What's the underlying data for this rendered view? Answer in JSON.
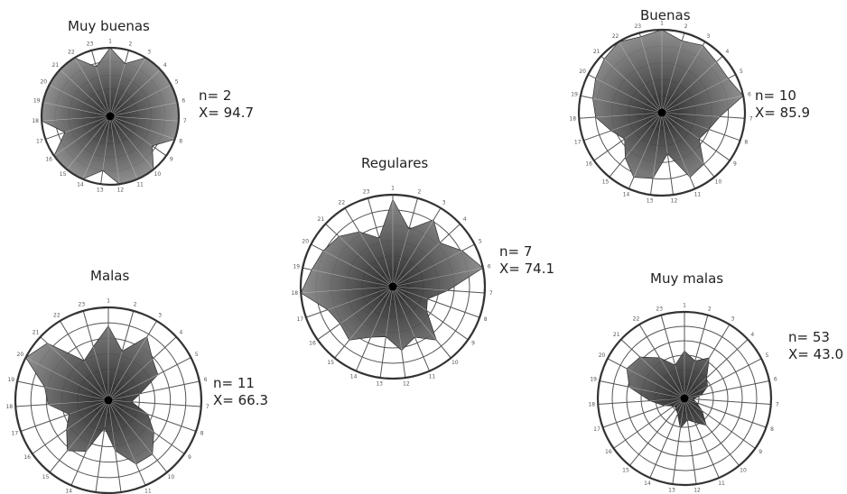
{
  "chart_data": [
    {
      "type": "radar",
      "title": "Muy buenas",
      "n_text": "n= 2",
      "x_text": "X= 94.7",
      "axes": [
        "1",
        "2",
        "3",
        "4",
        "5",
        "6",
        "7",
        "8",
        "9",
        "10",
        "11",
        "12",
        "13",
        "14",
        "15",
        "16",
        "17",
        "18",
        "19",
        "20",
        "21",
        "22",
        "23"
      ],
      "rings": 5,
      "max": 100,
      "values": [
        100,
        80,
        100,
        100,
        100,
        100,
        100,
        100,
        75,
        100,
        100,
        100,
        80,
        100,
        100,
        100,
        70,
        100,
        100,
        100,
        100,
        100,
        75
      ]
    },
    {
      "type": "radar",
      "title": "Buenas",
      "n_text": "n= 10",
      "x_text": "X= 85.9",
      "axes": [
        "1",
        "2",
        "3",
        "4",
        "5",
        "6",
        "7",
        "8",
        "9",
        "10",
        "11",
        "12",
        "13",
        "14",
        "15",
        "16",
        "17",
        "18",
        "19",
        "20",
        "21",
        "22",
        "23"
      ],
      "rings": 5,
      "max": 100,
      "values": [
        100,
        90,
        95,
        90,
        90,
        100,
        70,
        60,
        55,
        80,
        85,
        50,
        80,
        85,
        70,
        55,
        65,
        80,
        85,
        90,
        95,
        100,
        95
      ]
    },
    {
      "type": "radar",
      "title": "Regulares",
      "n_text": "n= 7",
      "x_text": "X= 74.1",
      "axes": [
        "1",
        "2",
        "3",
        "4",
        "5",
        "6",
        "7",
        "8",
        "9",
        "10",
        "11",
        "12",
        "13",
        "14",
        "15",
        "16",
        "17",
        "18",
        "19",
        "20",
        "21",
        "22",
        "23"
      ],
      "rings": 6,
      "max": 100,
      "values": [
        95,
        65,
        85,
        70,
        85,
        100,
        60,
        40,
        45,
        75,
        60,
        70,
        55,
        60,
        75,
        70,
        75,
        100,
        90,
        85,
        80,
        70,
        55
      ]
    },
    {
      "type": "radar",
      "title": "Malas",
      "n_text": "n= 11",
      "x_text": "X= 66.3",
      "axes": [
        "1",
        "2",
        "3",
        "4",
        "5",
        "6",
        "7",
        "8",
        "9",
        "10",
        "11",
        "12",
        "13",
        "14",
        "15",
        "16",
        "17",
        "18",
        "19",
        "20",
        "21",
        "22",
        "23"
      ],
      "rings": 6,
      "max": 100,
      "values": [
        80,
        55,
        80,
        65,
        60,
        35,
        25,
        45,
        60,
        75,
        75,
        55,
        30,
        60,
        70,
        55,
        45,
        65,
        70,
        100,
        90,
        50,
        60
      ]
    },
    {
      "type": "radar",
      "title": "Muy malas",
      "n_text": "n= 53",
      "x_text": "X= 43.0",
      "axes": [
        "1",
        "2",
        "3",
        "4",
        "5",
        "6",
        "7",
        "8",
        "9",
        "10",
        "11",
        "12",
        "13",
        "14",
        "15",
        "16",
        "17",
        "18",
        "19",
        "20",
        "21",
        "22",
        "23"
      ],
      "rings": 6,
      "max": 100,
      "values": [
        55,
        45,
        55,
        35,
        30,
        20,
        10,
        15,
        25,
        40,
        30,
        25,
        35,
        20,
        15,
        15,
        25,
        40,
        65,
        75,
        70,
        55,
        40
      ]
    }
  ],
  "colors": {
    "fill_dark": "#1e1e1e",
    "fill_light": "#8a8a8a",
    "grid": "#555555",
    "grid_inner": "#d8d8d8"
  }
}
